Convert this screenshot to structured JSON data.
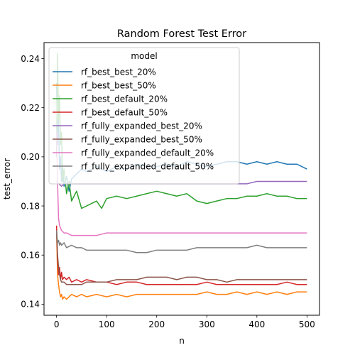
{
  "chart_data": {
    "type": "line",
    "title": "Random Forest Test Error",
    "xlabel": "n",
    "ylabel": "test_error",
    "xlim": [
      -25,
      525
    ],
    "ylim": [
      0.1355,
      0.2465
    ],
    "xticks": [
      0,
      100,
      200,
      300,
      400,
      500
    ],
    "xtick_labels": [
      "0",
      "100",
      "200",
      "300",
      "400",
      "500"
    ],
    "yticks": [
      0.14,
      0.16,
      0.18,
      0.2,
      0.22,
      0.24
    ],
    "ytick_labels": [
      "0.14",
      "0.16",
      "0.18",
      "0.20",
      "0.22",
      "0.24"
    ],
    "grid": false,
    "legend": {
      "title": "model",
      "placement": "upper-left"
    },
    "series": [
      {
        "name": "rf_best_best_20%",
        "color": "#1f77b4",
        "x": [
          0,
          2,
          4,
          6,
          8,
          10,
          12,
          15,
          20,
          25,
          30,
          40,
          50,
          60,
          80,
          100,
          120,
          140,
          160,
          180,
          200,
          220,
          240,
          260,
          280,
          300,
          320,
          340,
          360,
          380,
          400,
          420,
          440,
          460,
          480,
          490,
          500
        ],
        "y": [
          0.23,
          0.205,
          0.215,
          0.195,
          0.2,
          0.19,
          0.196,
          0.188,
          0.192,
          0.186,
          0.191,
          0.193,
          0.195,
          0.194,
          0.196,
          0.194,
          0.196,
          0.195,
          0.197,
          0.196,
          0.196,
          0.197,
          0.196,
          0.198,
          0.197,
          0.196,
          0.197,
          0.198,
          0.198,
          0.197,
          0.198,
          0.197,
          0.198,
          0.197,
          0.197,
          0.196,
          0.195
        ]
      },
      {
        "name": "rf_best_best_50%",
        "color": "#ff7f0e",
        "x": [
          0,
          2,
          4,
          6,
          8,
          10,
          12,
          15,
          20,
          25,
          30,
          40,
          50,
          60,
          80,
          100,
          120,
          140,
          160,
          180,
          200,
          220,
          240,
          260,
          280,
          300,
          320,
          340,
          360,
          380,
          400,
          420,
          440,
          460,
          480,
          500
        ],
        "y": [
          0.17,
          0.152,
          0.148,
          0.145,
          0.143,
          0.144,
          0.142,
          0.143,
          0.142,
          0.143,
          0.144,
          0.143,
          0.144,
          0.143,
          0.144,
          0.143,
          0.144,
          0.143,
          0.144,
          0.144,
          0.144,
          0.144,
          0.144,
          0.144,
          0.144,
          0.145,
          0.144,
          0.144,
          0.145,
          0.144,
          0.145,
          0.144,
          0.145,
          0.144,
          0.145,
          0.145
        ]
      },
      {
        "name": "rf_best_default_20%",
        "color": "#2ca02c",
        "x": [
          0,
          2,
          4,
          6,
          8,
          10,
          12,
          15,
          20,
          25,
          30,
          40,
          50,
          60,
          70,
          80,
          90,
          100,
          120,
          140,
          160,
          180,
          200,
          220,
          240,
          260,
          280,
          300,
          320,
          340,
          360,
          380,
          400,
          420,
          440,
          460,
          480,
          500
        ],
        "y": [
          0.2,
          0.242,
          0.215,
          0.225,
          0.205,
          0.21,
          0.19,
          0.195,
          0.185,
          0.19,
          0.182,
          0.186,
          0.179,
          0.18,
          0.181,
          0.182,
          0.179,
          0.183,
          0.184,
          0.183,
          0.184,
          0.185,
          0.186,
          0.185,
          0.184,
          0.185,
          0.182,
          0.181,
          0.182,
          0.183,
          0.183,
          0.184,
          0.184,
          0.185,
          0.184,
          0.184,
          0.183,
          0.183
        ]
      },
      {
        "name": "rf_best_default_50%",
        "color": "#d62728",
        "x": [
          0,
          2,
          4,
          6,
          8,
          10,
          12,
          15,
          20,
          25,
          30,
          40,
          50,
          60,
          80,
          100,
          120,
          140,
          160,
          180,
          200,
          220,
          240,
          260,
          280,
          300,
          320,
          340,
          360,
          380,
          400,
          420,
          440,
          460,
          480,
          500
        ],
        "y": [
          0.172,
          0.158,
          0.152,
          0.155,
          0.15,
          0.153,
          0.15,
          0.151,
          0.15,
          0.151,
          0.149,
          0.15,
          0.149,
          0.15,
          0.149,
          0.149,
          0.148,
          0.149,
          0.149,
          0.148,
          0.148,
          0.148,
          0.148,
          0.148,
          0.148,
          0.149,
          0.148,
          0.148,
          0.148,
          0.148,
          0.148,
          0.148,
          0.148,
          0.149,
          0.148,
          0.148
        ]
      },
      {
        "name": "rf_fully_expanded_best_20%",
        "color": "#9467bd",
        "x": [
          0,
          5,
          10,
          15,
          20,
          30,
          40,
          50,
          60,
          80,
          100,
          120,
          140,
          160,
          180,
          200,
          220,
          240,
          260,
          280,
          300,
          320,
          340,
          360,
          380,
          400,
          420,
          440,
          460,
          480,
          500
        ],
        "y": [
          0.19,
          0.189,
          0.188,
          0.189,
          0.189,
          0.189,
          0.189,
          0.189,
          0.189,
          0.189,
          0.189,
          0.189,
          0.189,
          0.189,
          0.189,
          0.189,
          0.189,
          0.189,
          0.189,
          0.189,
          0.189,
          0.189,
          0.189,
          0.189,
          0.189,
          0.19,
          0.19,
          0.19,
          0.19,
          0.19,
          0.19
        ]
      },
      {
        "name": "rf_fully_expanded_best_50%",
        "color": "#8c564b",
        "x": [
          0,
          2,
          4,
          6,
          8,
          10,
          15,
          20,
          30,
          40,
          50,
          60,
          80,
          100,
          120,
          140,
          160,
          180,
          200,
          220,
          240,
          260,
          280,
          300,
          320,
          340,
          360,
          380,
          400,
          420,
          440,
          460,
          480,
          500
        ],
        "y": [
          0.17,
          0.16,
          0.155,
          0.152,
          0.15,
          0.149,
          0.149,
          0.148,
          0.148,
          0.148,
          0.148,
          0.149,
          0.149,
          0.149,
          0.15,
          0.15,
          0.15,
          0.151,
          0.151,
          0.151,
          0.15,
          0.151,
          0.151,
          0.15,
          0.15,
          0.149,
          0.15,
          0.15,
          0.15,
          0.15,
          0.15,
          0.15,
          0.15,
          0.15
        ]
      },
      {
        "name": "rf_fully_expanded_default_20%",
        "color": "#e377c2",
        "x": [
          0,
          2,
          4,
          6,
          8,
          10,
          15,
          20,
          30,
          40,
          60,
          80,
          100,
          200,
          300,
          400,
          500
        ],
        "y": [
          0.21,
          0.19,
          0.175,
          0.172,
          0.171,
          0.17,
          0.169,
          0.169,
          0.168,
          0.168,
          0.168,
          0.168,
          0.169,
          0.169,
          0.169,
          0.169,
          0.169
        ]
      },
      {
        "name": "rf_fully_expanded_default_50%",
        "color": "#7f7f7f",
        "x": [
          0,
          2,
          4,
          6,
          8,
          10,
          15,
          20,
          30,
          40,
          50,
          60,
          80,
          100,
          120,
          140,
          160,
          180,
          200,
          220,
          240,
          260,
          280,
          300,
          320,
          340,
          360,
          380,
          400,
          420,
          440,
          460,
          480,
          500
        ],
        "y": [
          0.17,
          0.165,
          0.166,
          0.164,
          0.165,
          0.164,
          0.165,
          0.163,
          0.164,
          0.163,
          0.163,
          0.162,
          0.162,
          0.162,
          0.162,
          0.162,
          0.161,
          0.161,
          0.162,
          0.162,
          0.162,
          0.162,
          0.163,
          0.163,
          0.163,
          0.163,
          0.163,
          0.163,
          0.164,
          0.163,
          0.163,
          0.163,
          0.163,
          0.163
        ]
      }
    ]
  }
}
